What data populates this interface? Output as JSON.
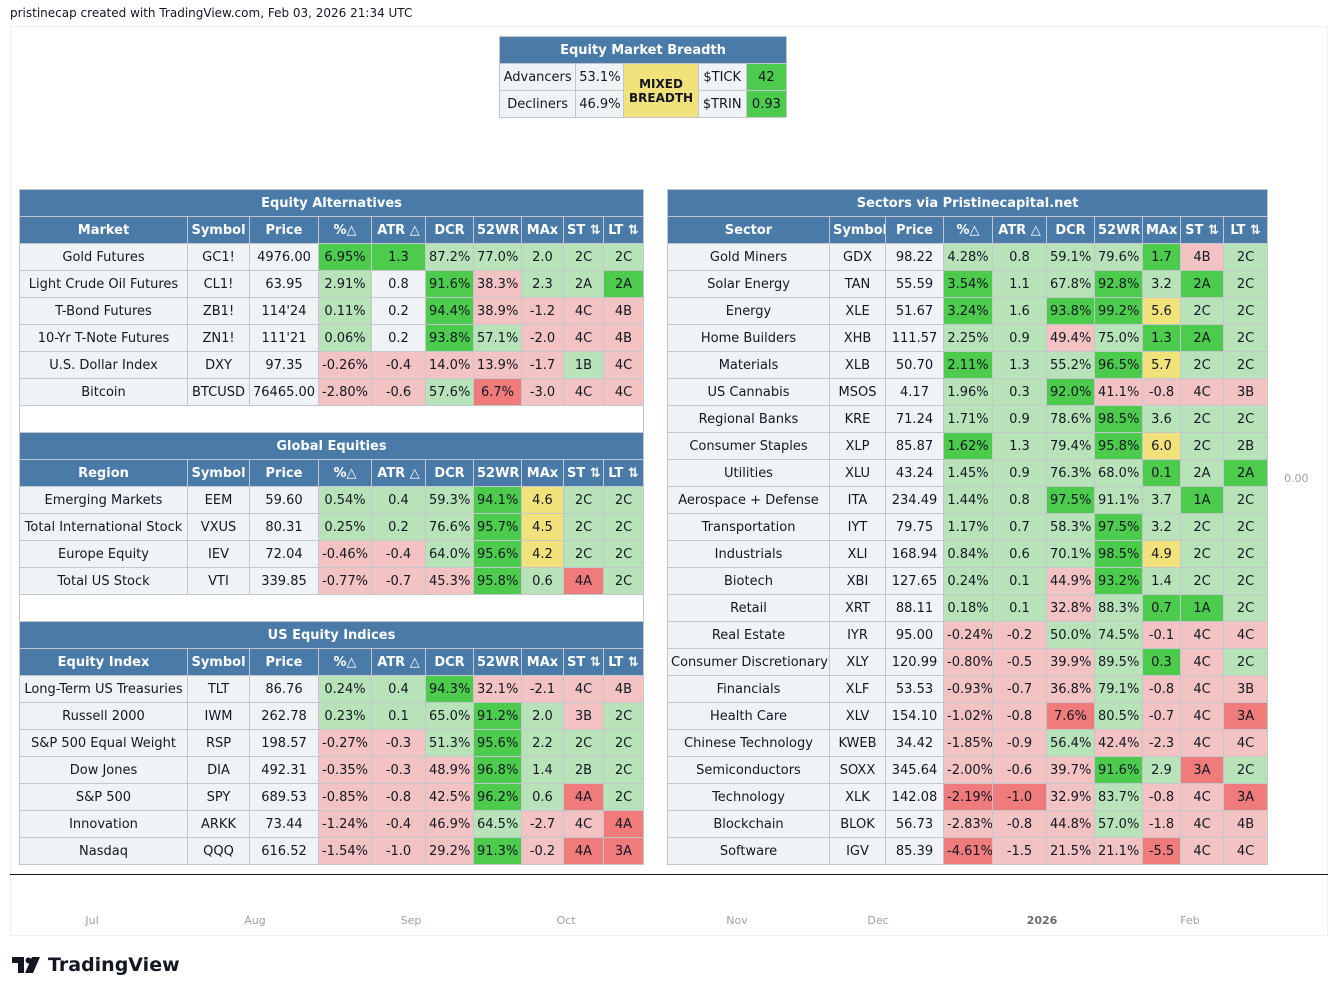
{
  "caption": "pristinecap created with TradingView.com, Feb 03, 2026 21:34 UTC",
  "brand": "TradingView",
  "price_label": "0.00",
  "time_axis": [
    "Jul",
    "Aug",
    "Sep",
    "Oct",
    "Nov",
    "Dec",
    "2026",
    "Feb"
  ],
  "colors": {
    "header": "#4a7aa8",
    "strong_green": "#4ccb4c",
    "light_green": "#b8e3b8",
    "light_red": "#f3c2c2",
    "strong_red": "#ef7b7b",
    "yellow": "#f2e27c",
    "neutral": "#f0f3f5"
  },
  "breadth": {
    "title": "Equity Market Breadth",
    "advancers_label": "Advancers",
    "advancers_value": "53.1%",
    "decliners_label": "Decliners",
    "decliners_value": "46.9%",
    "status_line1": "MIXED",
    "status_line2": "BREADTH",
    "tick_label": "$TICK",
    "tick_value": "42",
    "trin_label": "$TRIN",
    "trin_value": "0.93"
  },
  "columns": [
    "Symbol",
    "Price",
    "%△",
    "ATR △",
    "DCR",
    "52WR",
    "MAx",
    "ST ⇅",
    "LT ⇅"
  ],
  "left_sections": [
    {
      "title": "Equity Alternatives",
      "first_col": "Market",
      "rows": [
        {
          "c": [
            "Gold Futures",
            "GC1!",
            "4976.00",
            "6.95%",
            "1.3",
            "87.2%",
            "77.0%",
            "2.0",
            "2C",
            "2C"
          ],
          "k": [
            "",
            "",
            "",
            "gs",
            "gs",
            "gl",
            "gl",
            "gl",
            "gl",
            "gl"
          ]
        },
        {
          "c": [
            "Light Crude Oil Futures",
            "CL1!",
            "63.95",
            "2.91%",
            "0.8",
            "91.6%",
            "38.3%",
            "2.3",
            "2A",
            "2A"
          ],
          "k": [
            "",
            "",
            "",
            "gl",
            "",
            "gs",
            "rl",
            "gl",
            "gl",
            "gs"
          ]
        },
        {
          "c": [
            "T-Bond Futures",
            "ZB1!",
            "114'24",
            "0.11%",
            "0.2",
            "94.4%",
            "38.9%",
            "-1.2",
            "4C",
            "4B"
          ],
          "k": [
            "",
            "",
            "",
            "gl",
            "",
            "gs",
            "rl",
            "rl",
            "rl",
            "rl"
          ]
        },
        {
          "c": [
            "10-Yr T-Note Futures",
            "ZN1!",
            "111'21",
            "0.06%",
            "0.2",
            "93.8%",
            "57.1%",
            "-2.0",
            "4C",
            "4B"
          ],
          "k": [
            "",
            "",
            "",
            "gl",
            "",
            "gs",
            "gl",
            "rl",
            "rl",
            "rl"
          ]
        },
        {
          "c": [
            "U.S. Dollar Index",
            "DXY",
            "97.35",
            "-0.26%",
            "-0.4",
            "14.0%",
            "13.9%",
            "-1.7",
            "1B",
            "4C"
          ],
          "k": [
            "",
            "",
            "",
            "rl",
            "rl",
            "rl",
            "rl",
            "rl",
            "gl",
            "rl"
          ]
        },
        {
          "c": [
            "Bitcoin",
            "BTCUSD",
            "76465.00",
            "-2.80%",
            "-0.6",
            "57.6%",
            "6.7%",
            "-3.0",
            "4C",
            "4C"
          ],
          "k": [
            "",
            "",
            "",
            "rl",
            "rl",
            "gl",
            "rs",
            "rl",
            "rl",
            "rl"
          ]
        }
      ]
    },
    {
      "title": "Global Equities",
      "first_col": "Region",
      "rows": [
        {
          "c": [
            "Emerging Markets",
            "EEM",
            "59.60",
            "0.54%",
            "0.4",
            "59.3%",
            "94.1%",
            "4.6",
            "2C",
            "2C"
          ],
          "k": [
            "",
            "",
            "",
            "gl",
            "gl",
            "gl",
            "gs",
            "y",
            "gl",
            "gl"
          ]
        },
        {
          "c": [
            "Total International Stock",
            "VXUS",
            "80.31",
            "0.25%",
            "0.2",
            "76.6%",
            "95.7%",
            "4.5",
            "2C",
            "2C"
          ],
          "k": [
            "",
            "",
            "",
            "gl",
            "gl",
            "gl",
            "gs",
            "y",
            "gl",
            "gl"
          ]
        },
        {
          "c": [
            "Europe Equity",
            "IEV",
            "72.04",
            "-0.46%",
            "-0.4",
            "64.0%",
            "95.6%",
            "4.2",
            "2C",
            "2C"
          ],
          "k": [
            "",
            "",
            "",
            "rl",
            "rl",
            "gl",
            "gs",
            "y",
            "gl",
            "gl"
          ]
        },
        {
          "c": [
            "Total US Stock",
            "VTI",
            "339.85",
            "-0.77%",
            "-0.7",
            "45.3%",
            "95.8%",
            "0.6",
            "4A",
            "2C"
          ],
          "k": [
            "",
            "",
            "",
            "rl",
            "rl",
            "rl",
            "gs",
            "gl",
            "rs",
            "gl"
          ]
        }
      ]
    },
    {
      "title": "US Equity Indices",
      "first_col": "Equity Index",
      "rows": [
        {
          "c": [
            "Long-Term US Treasuries",
            "TLT",
            "86.76",
            "0.24%",
            "0.4",
            "94.3%",
            "32.1%",
            "-2.1",
            "4C",
            "4B"
          ],
          "k": [
            "",
            "",
            "",
            "gl",
            "gl",
            "gs",
            "rl",
            "rl",
            "rl",
            "rl"
          ]
        },
        {
          "c": [
            "Russell 2000",
            "IWM",
            "262.78",
            "0.23%",
            "0.1",
            "65.0%",
            "91.2%",
            "2.0",
            "3B",
            "2C"
          ],
          "k": [
            "",
            "",
            "",
            "gl",
            "gl",
            "gl",
            "gs",
            "gl",
            "rl",
            "gl"
          ]
        },
        {
          "c": [
            "S&P 500 Equal Weight",
            "RSP",
            "198.57",
            "-0.27%",
            "-0.3",
            "51.3%",
            "95.6%",
            "2.2",
            "2C",
            "2C"
          ],
          "k": [
            "",
            "",
            "",
            "rl",
            "rl",
            "gl",
            "gs",
            "gl",
            "gl",
            "gl"
          ]
        },
        {
          "c": [
            "Dow Jones",
            "DIA",
            "492.31",
            "-0.35%",
            "-0.3",
            "48.9%",
            "96.8%",
            "1.4",
            "2B",
            "2C"
          ],
          "k": [
            "",
            "",
            "",
            "rl",
            "rl",
            "rl",
            "gs",
            "gl",
            "gl",
            "gl"
          ]
        },
        {
          "c": [
            "S&P 500",
            "SPY",
            "689.53",
            "-0.85%",
            "-0.8",
            "42.5%",
            "96.2%",
            "0.6",
            "4A",
            "2C"
          ],
          "k": [
            "",
            "",
            "",
            "rl",
            "rl",
            "rl",
            "gs",
            "gl",
            "rs",
            "gl"
          ]
        },
        {
          "c": [
            "Innovation",
            "ARKK",
            "73.44",
            "-1.24%",
            "-0.4",
            "46.9%",
            "64.5%",
            "-2.7",
            "4C",
            "4A"
          ],
          "k": [
            "",
            "",
            "",
            "rl",
            "rl",
            "rl",
            "gl",
            "rl",
            "rl",
            "rs"
          ]
        },
        {
          "c": [
            "Nasdaq",
            "QQQ",
            "616.52",
            "-1.54%",
            "-1.0",
            "29.2%",
            "91.3%",
            "-0.2",
            "4A",
            "3A"
          ],
          "k": [
            "",
            "",
            "",
            "rl",
            "rl",
            "rl",
            "gs",
            "rl",
            "rs",
            "rs"
          ]
        }
      ]
    }
  ],
  "sectors": {
    "title": "Sectors via Pristinecapital.net",
    "first_col": "Sector",
    "rows": [
      {
        "c": [
          "Gold Miners",
          "GDX",
          "98.22",
          "4.28%",
          "0.8",
          "59.1%",
          "79.6%",
          "1.7",
          "4B",
          "2C"
        ],
        "k": [
          "",
          "",
          "",
          "gl",
          "gl",
          "gl",
          "gl",
          "gs",
          "rl",
          "gl"
        ]
      },
      {
        "c": [
          "Solar Energy",
          "TAN",
          "55.59",
          "3.54%",
          "1.1",
          "67.8%",
          "92.8%",
          "3.2",
          "2A",
          "2C"
        ],
        "k": [
          "",
          "",
          "",
          "gs",
          "gl",
          "gl",
          "gs",
          "gl",
          "gs",
          "gl"
        ]
      },
      {
        "c": [
          "Energy",
          "XLE",
          "51.67",
          "3.24%",
          "1.6",
          "93.8%",
          "99.2%",
          "5.6",
          "2C",
          "2C"
        ],
        "k": [
          "",
          "",
          "",
          "gs",
          "gl",
          "gs",
          "gs",
          "y",
          "gl",
          "gl"
        ]
      },
      {
        "c": [
          "Home Builders",
          "XHB",
          "111.57",
          "2.25%",
          "0.9",
          "49.4%",
          "75.0%",
          "1.3",
          "2A",
          "2C"
        ],
        "k": [
          "",
          "",
          "",
          "gl",
          "gl",
          "rl",
          "gl",
          "gs",
          "gs",
          "gl"
        ]
      },
      {
        "c": [
          "Materials",
          "XLB",
          "50.70",
          "2.11%",
          "1.3",
          "55.2%",
          "96.5%",
          "5.7",
          "2C",
          "2C"
        ],
        "k": [
          "",
          "",
          "",
          "gs",
          "gl",
          "gl",
          "gs",
          "y",
          "gl",
          "gl"
        ]
      },
      {
        "c": [
          "US Cannabis",
          "MSOS",
          "4.17",
          "1.96%",
          "0.3",
          "92.0%",
          "41.1%",
          "-0.8",
          "4C",
          "3B"
        ],
        "k": [
          "",
          "",
          "",
          "gl",
          "gl",
          "gs",
          "rl",
          "rl",
          "rl",
          "rl"
        ]
      },
      {
        "c": [
          "Regional Banks",
          "KRE",
          "71.24",
          "1.71%",
          "0.9",
          "78.6%",
          "98.5%",
          "3.6",
          "2C",
          "2C"
        ],
        "k": [
          "",
          "",
          "",
          "gl",
          "gl",
          "gl",
          "gs",
          "gl",
          "gl",
          "gl"
        ]
      },
      {
        "c": [
          "Consumer Staples",
          "XLP",
          "85.87",
          "1.62%",
          "1.3",
          "79.4%",
          "95.8%",
          "6.0",
          "2C",
          "2B"
        ],
        "k": [
          "",
          "",
          "",
          "gs",
          "gl",
          "gl",
          "gs",
          "y",
          "gl",
          "gl"
        ]
      },
      {
        "c": [
          "Utilities",
          "XLU",
          "43.24",
          "1.45%",
          "0.9",
          "76.3%",
          "68.0%",
          "0.1",
          "2A",
          "2A"
        ],
        "k": [
          "",
          "",
          "",
          "gl",
          "gl",
          "gl",
          "gl",
          "gs",
          "gl",
          "gs"
        ]
      },
      {
        "c": [
          "Aerospace + Defense",
          "ITA",
          "234.49",
          "1.44%",
          "0.8",
          "97.5%",
          "91.1%",
          "3.7",
          "1A",
          "2C"
        ],
        "k": [
          "",
          "",
          "",
          "gl",
          "gl",
          "gs",
          "gl",
          "gl",
          "gs",
          "gl"
        ]
      },
      {
        "c": [
          "Transportation",
          "IYT",
          "79.75",
          "1.17%",
          "0.7",
          "58.3%",
          "97.5%",
          "3.2",
          "2C",
          "2C"
        ],
        "k": [
          "",
          "",
          "",
          "gl",
          "gl",
          "gl",
          "gs",
          "gl",
          "gl",
          "gl"
        ]
      },
      {
        "c": [
          "Industrials",
          "XLI",
          "168.94",
          "0.84%",
          "0.6",
          "70.1%",
          "98.5%",
          "4.9",
          "2C",
          "2C"
        ],
        "k": [
          "",
          "",
          "",
          "gl",
          "gl",
          "gl",
          "gs",
          "y",
          "gl",
          "gl"
        ]
      },
      {
        "c": [
          "Biotech",
          "XBI",
          "127.65",
          "0.24%",
          "0.1",
          "44.9%",
          "93.2%",
          "1.4",
          "2C",
          "2C"
        ],
        "k": [
          "",
          "",
          "",
          "gl",
          "gl",
          "rl",
          "gs",
          "gl",
          "gl",
          "gl"
        ]
      },
      {
        "c": [
          "Retail",
          "XRT",
          "88.11",
          "0.18%",
          "0.1",
          "32.8%",
          "88.3%",
          "0.7",
          "1A",
          "2C"
        ],
        "k": [
          "",
          "",
          "",
          "gl",
          "gl",
          "rl",
          "gl",
          "gs",
          "gs",
          "gl"
        ]
      },
      {
        "c": [
          "Real Estate",
          "IYR",
          "95.00",
          "-0.24%",
          "-0.2",
          "50.0%",
          "74.5%",
          "-0.1",
          "4C",
          "4C"
        ],
        "k": [
          "",
          "",
          "",
          "rl",
          "rl",
          "gl",
          "gl",
          "rl",
          "rl",
          "rl"
        ]
      },
      {
        "c": [
          "Consumer Discretionary",
          "XLY",
          "120.99",
          "-0.80%",
          "-0.5",
          "39.9%",
          "89.5%",
          "0.3",
          "4C",
          "2C"
        ],
        "k": [
          "",
          "",
          "",
          "rl",
          "rl",
          "rl",
          "gl",
          "gs",
          "rl",
          "gl"
        ]
      },
      {
        "c": [
          "Financials",
          "XLF",
          "53.53",
          "-0.93%",
          "-0.7",
          "36.8%",
          "79.1%",
          "-0.8",
          "4C",
          "3B"
        ],
        "k": [
          "",
          "",
          "",
          "rl",
          "rl",
          "rl",
          "gl",
          "rl",
          "rl",
          "rl"
        ]
      },
      {
        "c": [
          "Health Care",
          "XLV",
          "154.10",
          "-1.02%",
          "-0.8",
          "7.6%",
          "80.5%",
          "-0.7",
          "4C",
          "3A"
        ],
        "k": [
          "",
          "",
          "",
          "rl",
          "rl",
          "rs",
          "gl",
          "rl",
          "rl",
          "rs"
        ]
      },
      {
        "c": [
          "Chinese Technology",
          "KWEB",
          "34.42",
          "-1.85%",
          "-0.9",
          "56.4%",
          "42.4%",
          "-2.3",
          "4C",
          "4C"
        ],
        "k": [
          "",
          "",
          "",
          "rl",
          "rl",
          "gl",
          "rl",
          "rl",
          "rl",
          "rl"
        ]
      },
      {
        "c": [
          "Semiconductors",
          "SOXX",
          "345.64",
          "-2.00%",
          "-0.6",
          "39.7%",
          "91.6%",
          "2.9",
          "3A",
          "2C"
        ],
        "k": [
          "",
          "",
          "",
          "rl",
          "rl",
          "rl",
          "gs",
          "gl",
          "rs",
          "gl"
        ]
      },
      {
        "c": [
          "Technology",
          "XLK",
          "142.08",
          "-2.19%",
          "-1.0",
          "32.9%",
          "83.7%",
          "-0.8",
          "4C",
          "3A"
        ],
        "k": [
          "",
          "",
          "",
          "rs",
          "rs",
          "rl",
          "gl",
          "rl",
          "rl",
          "rs"
        ]
      },
      {
        "c": [
          "Blockchain",
          "BLOK",
          "56.73",
          "-2.83%",
          "-0.8",
          "44.8%",
          "57.0%",
          "-1.8",
          "4C",
          "4B"
        ],
        "k": [
          "",
          "",
          "",
          "rl",
          "rl",
          "rl",
          "gl",
          "rl",
          "rl",
          "rl"
        ]
      },
      {
        "c": [
          "Software",
          "IGV",
          "85.39",
          "-4.61%",
          "-1.5",
          "21.5%",
          "21.1%",
          "-5.5",
          "4C",
          "4C"
        ],
        "k": [
          "",
          "",
          "",
          "rs",
          "rl",
          "rl",
          "rl",
          "rs",
          "rl",
          "rl"
        ]
      }
    ]
  }
}
